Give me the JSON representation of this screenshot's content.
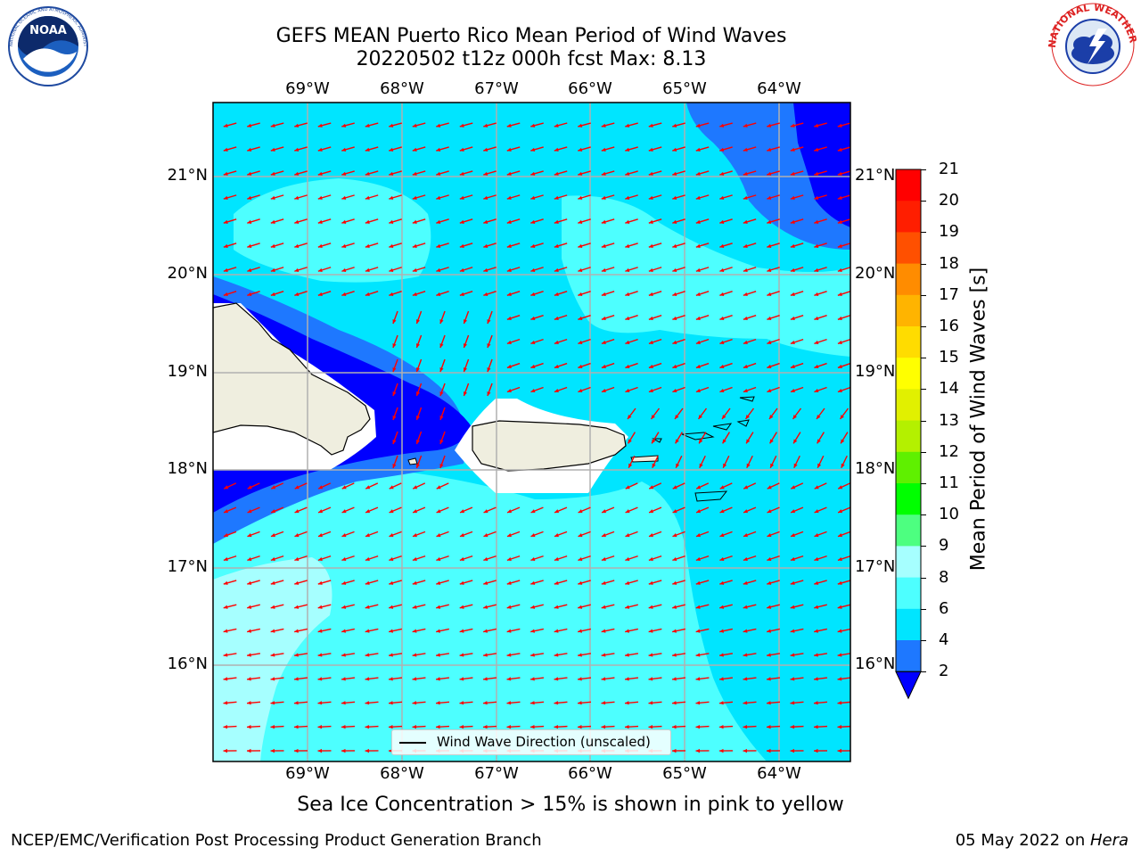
{
  "title_line1": "GEFS MEAN Puerto Rico Mean Period of Wind Waves",
  "title_line2": "20220502 t12z 000h fcst   Max: 8.13",
  "longitude_labels": [
    "69°W",
    "68°W",
    "67°W",
    "66°W",
    "65°W",
    "64°W"
  ],
  "latitude_labels": [
    "21°N",
    "20°N",
    "19°N",
    "18°N",
    "17°N",
    "16°N"
  ],
  "colorbar": {
    "label": "Mean Period of Wind Waves [s]",
    "ticks": [
      "2",
      "4",
      "6",
      "8",
      "9",
      "10",
      "11",
      "12",
      "13",
      "14",
      "15",
      "16",
      "17",
      "18",
      "19",
      "20",
      "21"
    ],
    "colors": [
      "#0000ff",
      "#1e78ff",
      "#00e5ff",
      "#4dffff",
      "#a6ffff",
      "#4dff80",
      "#00ff00",
      "#5ff000",
      "#b4f000",
      "#e1f000",
      "#ffff00",
      "#ffdc00",
      "#ffb400",
      "#ff8c00",
      "#ff5000",
      "#ff1e00",
      "#ff0000"
    ]
  },
  "legend": {
    "label": "Wind Wave Direction (unscaled)"
  },
  "arrow_color": "#ff0000",
  "note": "Sea Ice Concentration > 15% is shown in pink to yellow",
  "footer_left": "NCEP/EMC/Verification Post Processing Product Generation Branch",
  "footer_right_date": "05 May 2022 on ",
  "footer_right_host": "Hera",
  "logos": {
    "noaa": "NOAA",
    "nws": "NATIONAL WEATHER SERVICE"
  }
}
